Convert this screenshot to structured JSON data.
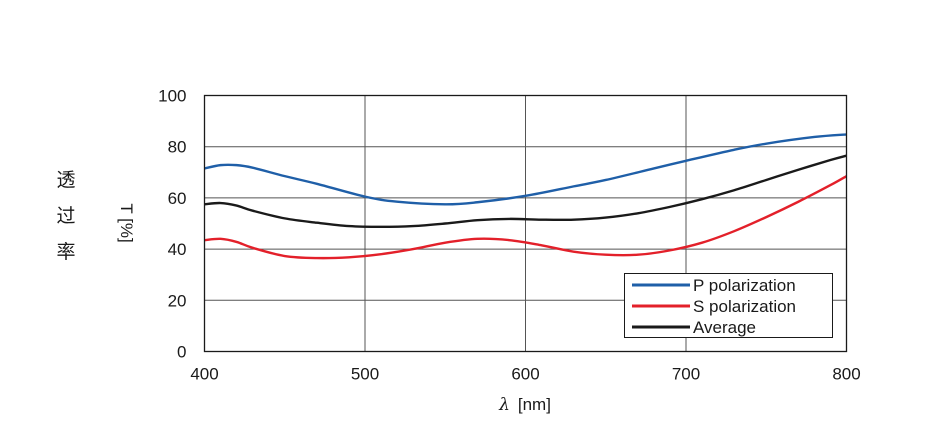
{
  "chart_data": {
    "type": "line",
    "ylabel_jp_chars": [
      "透",
      "过",
      "率"
    ],
    "ylabel_unit": "T [%]",
    "xlabel_symbol": "λ",
    "xlabel_unit": "[nm]",
    "xlim": [
      400,
      800
    ],
    "ylim": [
      0,
      100
    ],
    "x_ticks": [
      "400",
      "500",
      "600",
      "700",
      "800"
    ],
    "y_ticks": [
      "0",
      "20",
      "40",
      "60",
      "80",
      "100"
    ],
    "grid": true,
    "legend_position": "bottom-right",
    "series": [
      {
        "name": "P polarization",
        "color": "#1f5fa8",
        "x": [
          400,
          410,
          420,
          430,
          450,
          470,
          500,
          520,
          550,
          570,
          600,
          630,
          650,
          680,
          700,
          730,
          750,
          780,
          800
        ],
        "values": [
          71.5,
          72.8,
          72.8,
          71.8,
          68.5,
          65.5,
          60.5,
          58.5,
          57.5,
          58.3,
          60.8,
          64.5,
          67.0,
          71.5,
          74.5,
          78.8,
          81.2,
          83.8,
          84.8
        ]
      },
      {
        "name": "S polarization",
        "color": "#e3202a",
        "x": [
          400,
          410,
          420,
          430,
          450,
          470,
          490,
          510,
          530,
          550,
          570,
          590,
          610,
          630,
          650,
          670,
          690,
          710,
          730,
          750,
          770,
          790,
          800
        ],
        "values": [
          43.5,
          44.0,
          42.8,
          40.5,
          37.3,
          36.5,
          36.8,
          38.0,
          40.0,
          42.5,
          44.0,
          43.5,
          41.5,
          39.0,
          37.8,
          37.8,
          39.5,
          42.5,
          47.0,
          52.5,
          58.5,
          65.0,
          68.5
        ]
      },
      {
        "name": "Average",
        "color": "#1a1a1a",
        "x": [
          400,
          410,
          420,
          430,
          450,
          470,
          490,
          510,
          530,
          550,
          570,
          590,
          610,
          630,
          650,
          670,
          690,
          710,
          730,
          750,
          770,
          790,
          800
        ],
        "values": [
          57.5,
          58.0,
          57.0,
          55.0,
          52.0,
          50.3,
          49.0,
          48.7,
          49.0,
          50.0,
          51.3,
          51.8,
          51.5,
          51.5,
          52.3,
          54.0,
          56.5,
          59.5,
          63.0,
          67.0,
          71.0,
          74.8,
          76.5
        ]
      }
    ]
  }
}
